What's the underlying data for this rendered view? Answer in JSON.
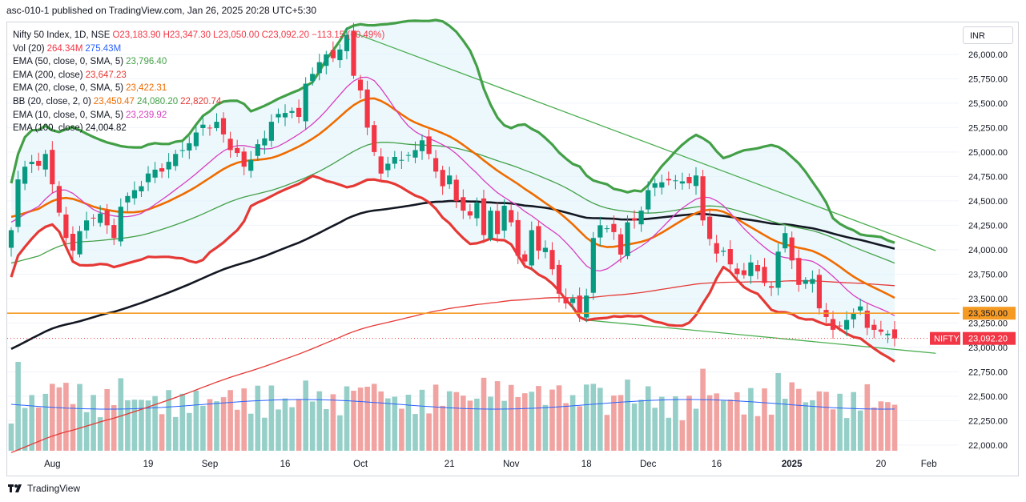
{
  "header": {
    "published_line": "asc-010-1 published on TradingView.com, Jan 26, 2025 20:28 UTC+5:30"
  },
  "legend": [
    {
      "label": "Nifty 50 Index, 1D, NSE",
      "values": [
        {
          "text": "O23,183.90",
          "color": "#f23645"
        },
        {
          "text": "H23,347.30",
          "color": "#f23645"
        },
        {
          "text": "L23,050.00",
          "color": "#f23645"
        },
        {
          "text": "C23,092.20",
          "color": "#f23645"
        },
        {
          "text": "−113.15 (−0.49%)",
          "color": "#f23645"
        }
      ]
    },
    {
      "label": "Vol (20)",
      "values": [
        {
          "text": "264.34M",
          "color": "#f23645"
        },
        {
          "text": "275.43M",
          "color": "#2962ff"
        }
      ]
    },
    {
      "label": "EMA (50, close, 0, SMA, 5)",
      "values": [
        {
          "text": "23,796.40",
          "color": "#43a047"
        }
      ]
    },
    {
      "label": "EMA (200, close)",
      "values": [
        {
          "text": "23,647.23",
          "color": "#e53935"
        }
      ]
    },
    {
      "label": "EMA (20, close, 0, SMA, 5)",
      "values": [
        {
          "text": "23,422.31",
          "color": "#ef6c00"
        }
      ]
    },
    {
      "label": "BB (20, close, 2, 0)",
      "values": [
        {
          "text": "23,450.47",
          "color": "#ef6c00"
        },
        {
          "text": "24,080.20",
          "color": "#43a047"
        },
        {
          "text": "22,820.74",
          "color": "#e53935"
        }
      ]
    },
    {
      "label": "EMA (10, close, 0, SMA, 5)",
      "values": [
        {
          "text": "23,239.92",
          "color": "#d83fbf"
        }
      ]
    },
    {
      "label": "EMA (100, close)",
      "values": [
        {
          "text": "24,004.82",
          "color": "#131722"
        }
      ]
    }
  ],
  "currency": "INR",
  "price_labels": {
    "level": "23,350.00",
    "symbol": "NIFTY",
    "last": "23,092.20"
  },
  "footer": {
    "brand": "TradingView"
  },
  "chart_data": {
    "type": "candlestick",
    "title": "Nifty 50 Index, 1D, NSE",
    "ylim": [
      21900,
      26300
    ],
    "y_ticks": [
      22000,
      22250,
      22500,
      22750,
      23000,
      23250,
      23500,
      23750,
      24000,
      24250,
      24500,
      24750,
      25000,
      25250,
      25500,
      25750,
      26000
    ],
    "y_tick_labels": [
      "22,000.00",
      "22,250.00",
      "22,500.00",
      "22,750.00",
      "23,000.00",
      "23,250.00",
      "23,500.00",
      "23,750.00",
      "24,000.00",
      "24,250.00",
      "24,500.00",
      "24,750.00",
      "25,000.00",
      "25,250.00",
      "25,500.00",
      "25,750.00",
      "26,000.00"
    ],
    "x_ticks": [
      {
        "label": "Aug",
        "i": 6,
        "bold": false
      },
      {
        "label": "19",
        "i": 20,
        "bold": false
      },
      {
        "label": "Sep",
        "i": 29,
        "bold": false
      },
      {
        "label": "16",
        "i": 40,
        "bold": false
      },
      {
        "label": "Oct",
        "i": 51,
        "bold": false
      },
      {
        "label": "21",
        "i": 64,
        "bold": false
      },
      {
        "label": "Nov",
        "i": 73,
        "bold": false
      },
      {
        "label": "18",
        "i": 84,
        "bold": false
      },
      {
        "label": "Dec",
        "i": 93,
        "bold": false
      },
      {
        "label": "16",
        "i": 103,
        "bold": false
      },
      {
        "label": "2025",
        "i": 114,
        "bold": true
      },
      {
        "label": "20",
        "i": 127,
        "bold": false
      },
      {
        "label": "Feb",
        "i": 134,
        "bold": false
      }
    ],
    "closes": [
      24200,
      24720,
      24850,
      24900,
      24860,
      24980,
      24670,
      24380,
      24120,
      23990,
      24190,
      24300,
      24320,
      24370,
      24250,
      24120,
      24440,
      24550,
      24610,
      24650,
      24780,
      24820,
      24800,
      24900,
      24980,
      25020,
      25090,
      25200,
      25280,
      25250,
      25310,
      25180,
      25020,
      24990,
      24850,
      24920,
      25080,
      25140,
      25310,
      25390,
      25400,
      25420,
      25360,
      25700,
      25800,
      25920,
      26000,
      25960,
      26050,
      26200,
      25780,
      25630,
      25250,
      25000,
      24780,
      24880,
      24950,
      24920,
      24970,
      25020,
      25120,
      24980,
      24800,
      24650,
      24760,
      24500,
      24400,
      24350,
      24480,
      24150,
      24400,
      24160,
      24450,
      24280,
      23940,
      23880,
      24200,
      23990,
      24020,
      23800,
      23550,
      23450,
      23500,
      23350,
      23530,
      24120,
      24250,
      24220,
      24180,
      23950,
      24280,
      24300,
      24400,
      24610,
      24680,
      24690,
      24710,
      24710,
      24700,
      24680,
      24760,
      24300,
      24110,
      23960,
      23990,
      23850,
      23750,
      23740,
      23870,
      23780,
      23660,
      23610,
      23980,
      24170,
      23890,
      23640,
      23690,
      23700,
      23400,
      23310,
      23180,
      23220,
      23280,
      23350,
      23420,
      23200,
      23180,
      23160,
      23140,
      23092
    ],
    "series": [
      {
        "name": "EMA (10, close, 0, SMA, 5)",
        "color": "#d83fbf",
        "last": 23239.92
      },
      {
        "name": "EMA (20, close, 0, SMA, 5)",
        "color": "#ef6c00",
        "last": 23422.31
      },
      {
        "name": "EMA (50, close, 0, SMA, 5)",
        "color": "#43a047",
        "last": 23796.4
      },
      {
        "name": "EMA (100, close)",
        "color": "#131722",
        "last": 24004.82
      },
      {
        "name": "EMA (200, close)",
        "color": "#e53935",
        "last": 23647.23
      },
      {
        "name": "BB upper",
        "color": "#43a047",
        "last": 24080.2
      },
      {
        "name": "BB lower",
        "color": "#e53935",
        "last": 22820.74
      }
    ],
    "horizontal_level": 23350,
    "trendlines": [
      {
        "from": [
          50,
          26220
        ],
        "to": [
          135,
          23990
        ]
      },
      {
        "from": [
          84,
          23280
        ],
        "to": [
          135,
          22940
        ]
      }
    ],
    "volume": {
      "ma_length": 20,
      "last": "264.34M",
      "ma_last": "275.43M"
    }
  }
}
